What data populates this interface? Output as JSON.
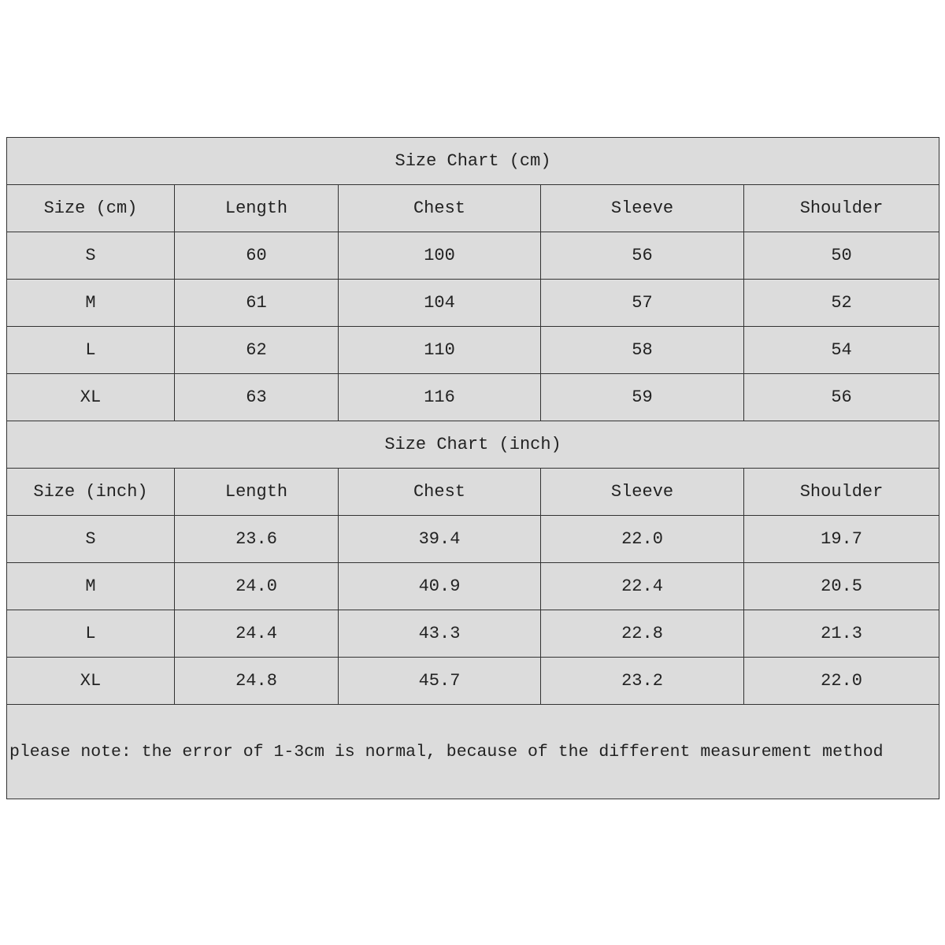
{
  "tables": [
    {
      "title": "Size Chart (cm)",
      "header": [
        "Size (cm)",
        "Length",
        "Chest",
        "Sleeve",
        "Shoulder"
      ],
      "rows": [
        [
          "S",
          60,
          100,
          56,
          50
        ],
        [
          "M",
          61,
          104,
          57,
          52
        ],
        [
          "L",
          62,
          110,
          58,
          54
        ],
        [
          "XL",
          63,
          116,
          59,
          56
        ]
      ]
    },
    {
      "title": "Size Chart (inch)",
      "header": [
        "Size (inch)",
        "Length",
        "Chest",
        "Sleeve",
        "Shoulder"
      ],
      "rows": [
        [
          "S",
          "23.6",
          "39.4",
          "22.0",
          "19.7"
        ],
        [
          "M",
          "24.0",
          "40.9",
          "22.4",
          "20.5"
        ],
        [
          "L",
          "24.4",
          "43.3",
          "22.8",
          "21.3"
        ],
        [
          "XL",
          "24.8",
          "45.7",
          "23.2",
          "22.0"
        ]
      ]
    }
  ],
  "note": "please note: the error of 1-3cm is normal, because of the different measurement method"
}
